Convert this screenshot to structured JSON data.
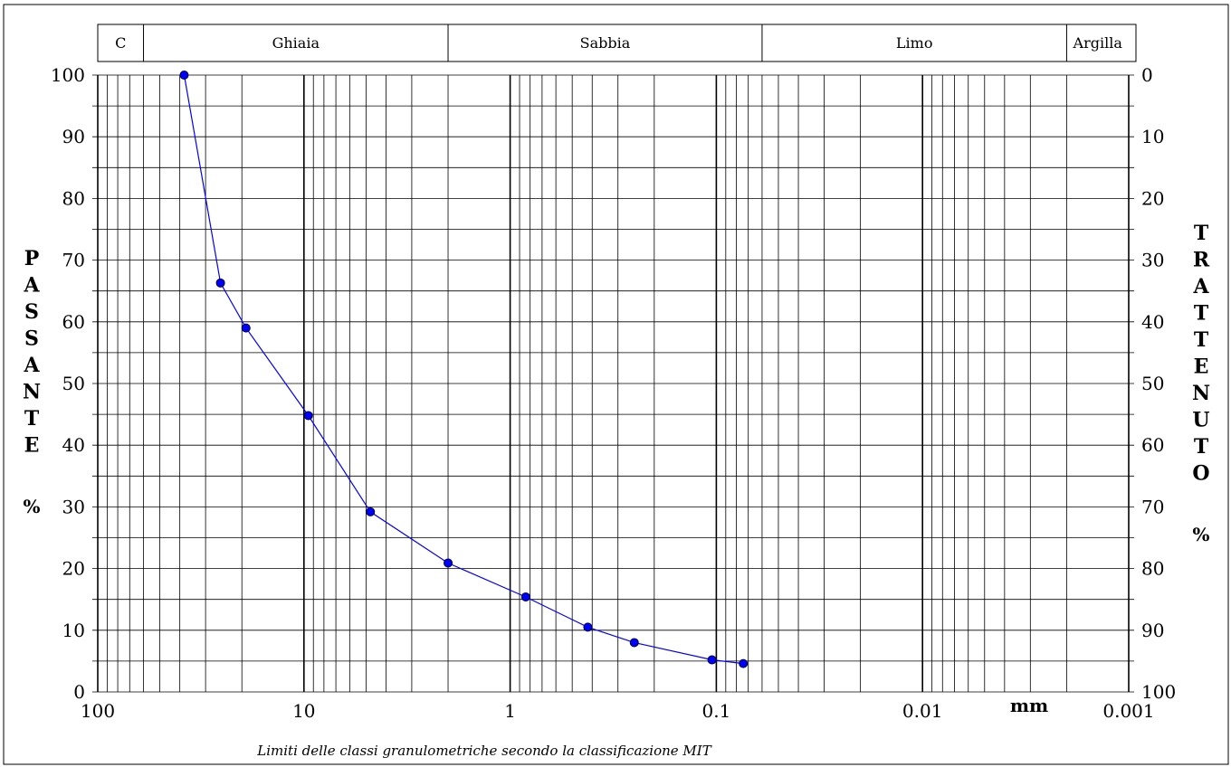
{
  "chart_data": {
    "type": "line",
    "x_scale": "log",
    "x_reversed": true,
    "xlim": [
      100,
      0.001
    ],
    "ylim": [
      0,
      100
    ],
    "y2lim": [
      100,
      0
    ],
    "grid": true,
    "x_ticks": [
      "100",
      "10",
      "1",
      "0.1",
      "0.01",
      "0.001"
    ],
    "y_ticks": [
      "0",
      "10",
      "20",
      "30",
      "40",
      "50",
      "60",
      "70",
      "80",
      "90",
      "100"
    ],
    "y2_ticks": [
      "100",
      "90",
      "80",
      "70",
      "60",
      "50",
      "40",
      "30",
      "20",
      "10",
      "0"
    ],
    "xlabel": "mm",
    "ylabel_letters": [
      "P",
      "A",
      "S",
      "S",
      "A",
      "N",
      "T",
      "E"
    ],
    "ylabel_unit": "%",
    "y2label_letters": [
      "T",
      "R",
      "A",
      "T",
      "T",
      "E",
      "N",
      "U",
      "T",
      "O"
    ],
    "y2label_unit": "%",
    "footnote": "Limiti delle classi granulometriche secondo la classificazione MIT",
    "classes": [
      {
        "label": "C",
        "from": 200,
        "to": 60
      },
      {
        "label": "Ghiaia",
        "from": 60,
        "to": 2
      },
      {
        "label": "Sabbia",
        "from": 2,
        "to": 0.06
      },
      {
        "label": "Limo",
        "from": 0.06,
        "to": 0.002
      },
      {
        "label": "Argilla",
        "from": 0.002,
        "to": 0.001
      }
    ],
    "series": [
      {
        "color": "#0000ff",
        "x": [
          38.1,
          25.4,
          19.1,
          9.52,
          4.76,
          2.0,
          0.84,
          0.42,
          0.25,
          0.105,
          0.074
        ],
        "y": [
          100,
          66.3,
          59.0,
          44.8,
          29.2,
          20.9,
          15.4,
          10.5,
          8.0,
          5.2,
          4.6
        ]
      }
    ]
  }
}
